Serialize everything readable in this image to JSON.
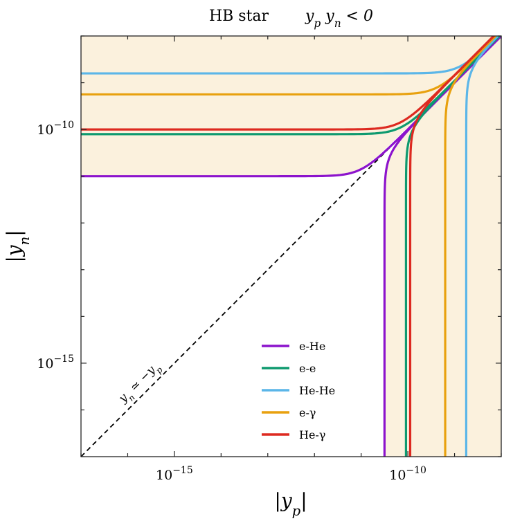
{
  "chart_data": {
    "type": "line",
    "title_left": "HB star",
    "title_right": "y_p y_n < 0",
    "xlabel": "|y_p|",
    "ylabel": "|y_n|",
    "xscale": "log",
    "yscale": "log",
    "xlim": [
      1e-17,
      1e-08
    ],
    "ylim": [
      1e-17,
      1e-08
    ],
    "x_ticks": [
      {
        "value": 1e-15,
        "label": "10^{-15}"
      },
      {
        "value": 1e-10,
        "label": "10^{-10}"
      }
    ],
    "y_ticks": [
      {
        "value": 1e-15,
        "label": "10^{-15}"
      },
      {
        "value": 1e-10,
        "label": "10^{-10}"
      }
    ],
    "shaded_region_color": "#fbf1dd",
    "diagonal_label": "y_n ≃ −y_p",
    "legend_position": "lower-center",
    "series": [
      {
        "name": "e-He",
        "color": "#8c13cc",
        "plateau_log": -11.0,
        "asymptote_log": -10.5
      },
      {
        "name": "e-e",
        "color": "#0e9a6f",
        "plateau_log": -10.1,
        "asymptote_log": -10.04
      },
      {
        "name": "He-He",
        "color": "#5bb6e8",
        "plateau_log": -8.8,
        "asymptote_log": -8.75
      },
      {
        "name": "e-γ",
        "color": "#e8a10e",
        "plateau_log": -9.25,
        "asymptote_log": -9.2
      },
      {
        "name": "He-γ",
        "color": "#dd2a20",
        "plateau_log": -10.0,
        "asymptote_log": -9.95
      }
    ]
  }
}
